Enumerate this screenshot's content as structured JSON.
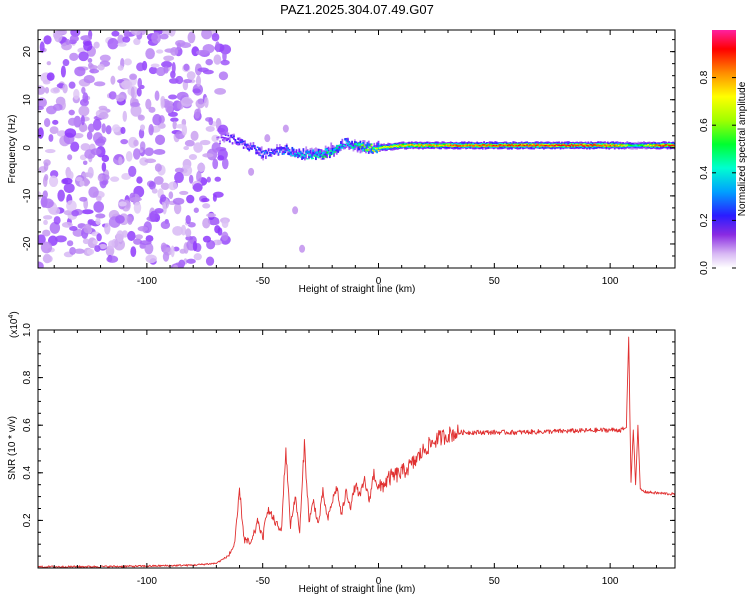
{
  "title": "PAZ1.2025.304.07.49.G07",
  "chart_data": [
    {
      "type": "heatmap",
      "title": "PAZ1.2025.304.07.49.G07",
      "xlabel": "Height of straight line (km)",
      "ylabel": "Frequency (Hz)",
      "xlim": [
        -147,
        128
      ],
      "ylim": [
        -25,
        24.5
      ],
      "xticks": [
        -100,
        -50,
        0,
        50,
        100
      ],
      "yticks": [
        -20,
        -10,
        0,
        10,
        20
      ],
      "noise_region_x": [
        -147,
        -70
      ],
      "ridge": {
        "x": [
          -70,
          -65,
          -60,
          -55,
          -50,
          -45,
          -40,
          -35,
          -30,
          -25,
          -20,
          -15,
          -10,
          -5,
          0,
          10,
          20,
          30,
          40,
          60,
          80,
          100,
          105,
          110,
          120,
          128
        ],
        "freq": [
          1.5,
          2.0,
          1.0,
          0.0,
          -1.5,
          -1.0,
          -0.5,
          -1.5,
          -1.5,
          -1.5,
          -1.0,
          1.0,
          0.5,
          0.0,
          0.0,
          0.5,
          0.5,
          0.5,
          0.5,
          0.5,
          0.5,
          0.5,
          0.5,
          0.5,
          0.5,
          0.5
        ],
        "amplitude": [
          0.15,
          0.25,
          0.3,
          0.3,
          0.35,
          0.3,
          0.4,
          0.45,
          0.5,
          0.55,
          0.55,
          0.45,
          0.55,
          0.7,
          0.75,
          0.8,
          0.85,
          0.88,
          0.92,
          0.95,
          0.95,
          0.92,
          0.8,
          0.5,
          0.9,
          0.92
        ]
      },
      "colorbar": {
        "label": "Normalized spectral amplitude",
        "range": [
          0.0,
          1.0
        ],
        "ticks": [
          "0.0",
          "0.2",
          "0.4",
          "0.6",
          "0.8"
        ],
        "colors": [
          "#ffffff",
          "#c9a0f0",
          "#8020ff",
          "#2020ff",
          "#00c0ff",
          "#00ffc0",
          "#00ff00",
          "#c0ff00",
          "#ffff00",
          "#ff8000",
          "#ff0000",
          "#ff00a0"
        ]
      }
    },
    {
      "type": "line",
      "xlabel": "Height of straight line (km)",
      "ylabel": "SNR (10 * v/v)",
      "scale_label": "(x10",
      "scale_exponent": "4",
      "scale_close": ")",
      "xlim": [
        -147,
        128
      ],
      "ylim": [
        0,
        1.0
      ],
      "xticks": [
        -100,
        -50,
        0,
        50,
        100
      ],
      "yticks": [
        0.2,
        0.4,
        0.6,
        0.8,
        1.0
      ],
      "ytick_labels": [
        "0.2",
        "0.4",
        "0.6",
        "0.8",
        "1.0"
      ],
      "color": "#e03030",
      "series": [
        {
          "name": "SNR",
          "x": [
            -147,
            -120,
            -100,
            -80,
            -70,
            -65,
            -62,
            -60,
            -58,
            -55,
            -52,
            -50,
            -48,
            -45,
            -42,
            -40,
            -38,
            -36,
            -34,
            -32,
            -30,
            -28,
            -26,
            -24,
            -22,
            -20,
            -18,
            -16,
            -14,
            -12,
            -10,
            -8,
            -6,
            -4,
            -2,
            0,
            5,
            10,
            15,
            20,
            25,
            30,
            35,
            40,
            60,
            80,
            100,
            105,
            107,
            108,
            109,
            110,
            111,
            112,
            113,
            115,
            120,
            128
          ],
          "y": [
            0.005,
            0.006,
            0.008,
            0.012,
            0.02,
            0.05,
            0.1,
            0.33,
            0.12,
            0.1,
            0.2,
            0.12,
            0.25,
            0.2,
            0.15,
            0.5,
            0.18,
            0.3,
            0.15,
            0.52,
            0.2,
            0.28,
            0.18,
            0.32,
            0.2,
            0.28,
            0.34,
            0.22,
            0.32,
            0.26,
            0.35,
            0.3,
            0.37,
            0.28,
            0.4,
            0.33,
            0.38,
            0.4,
            0.44,
            0.5,
            0.54,
            0.56,
            0.57,
            0.57,
            0.57,
            0.575,
            0.58,
            0.58,
            0.59,
            0.97,
            0.36,
            0.58,
            0.35,
            0.6,
            0.33,
            0.32,
            0.315,
            0.31
          ]
        }
      ]
    }
  ]
}
